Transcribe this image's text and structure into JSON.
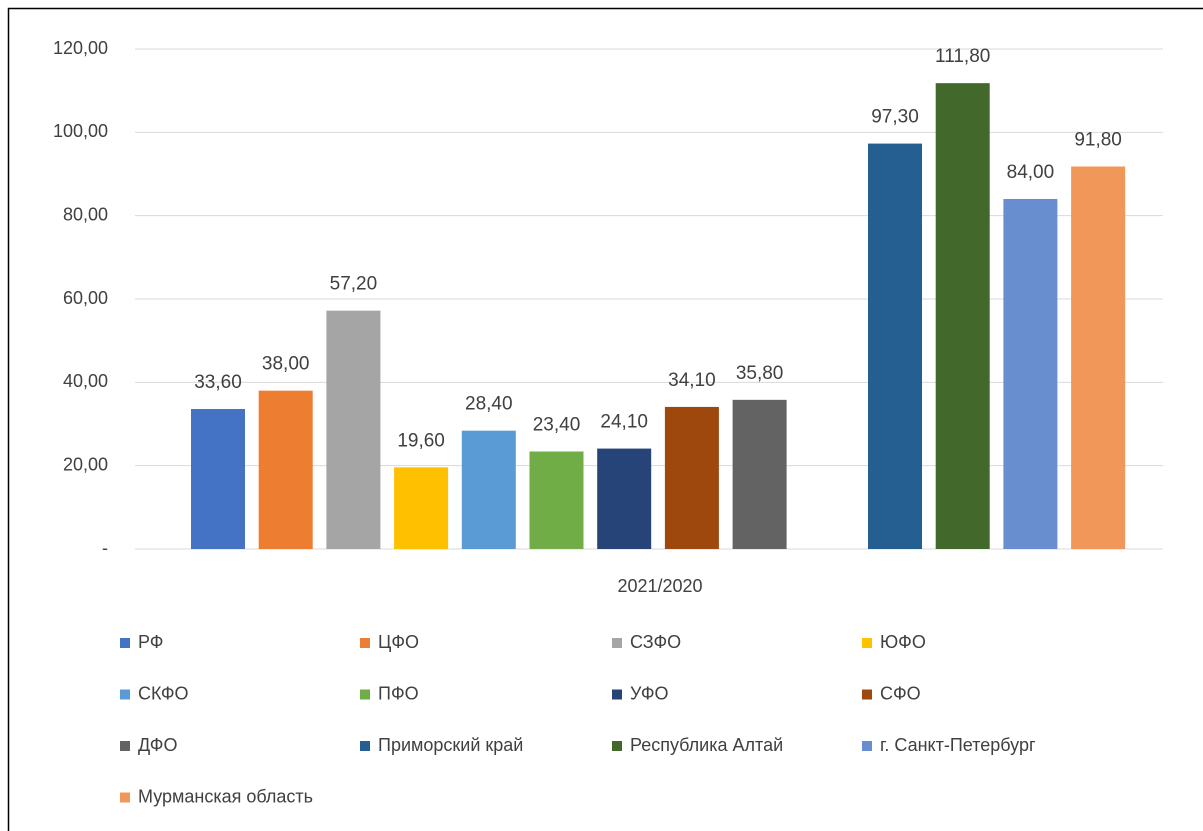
{
  "chart_data": {
    "type": "bar",
    "categories": [
      "2021/2020"
    ],
    "ylim": [
      0,
      120
    ],
    "yticks": [
      {
        "value": 0,
        "label": "-"
      },
      {
        "value": 20,
        "label": "20,00"
      },
      {
        "value": 40,
        "label": "40,00"
      },
      {
        "value": 60,
        "label": "60,00"
      },
      {
        "value": 80,
        "label": "80,00"
      },
      {
        "value": 100,
        "label": "100,00"
      },
      {
        "value": 120,
        "label": "120,00"
      }
    ],
    "grid": true,
    "legend": "bottom",
    "series": [
      {
        "name": "РФ",
        "color": "#4472c4",
        "values": [
          33.6
        ],
        "value_labels": [
          "33,60"
        ]
      },
      {
        "name": "ЦФО",
        "color": "#ed7d31",
        "values": [
          38.0
        ],
        "value_labels": [
          "38,00"
        ]
      },
      {
        "name": "СЗФО",
        "color": "#a5a5a5",
        "values": [
          57.2
        ],
        "value_labels": [
          "57,20"
        ]
      },
      {
        "name": "ЮФО",
        "color": "#ffc000",
        "values": [
          19.6
        ],
        "value_labels": [
          "19,60"
        ]
      },
      {
        "name": "СКФО",
        "color": "#5b9bd5",
        "values": [
          28.4
        ],
        "value_labels": [
          "28,40"
        ]
      },
      {
        "name": "ПФО",
        "color": "#70ad47",
        "values": [
          23.4
        ],
        "value_labels": [
          "23,40"
        ]
      },
      {
        "name": "УФО",
        "color": "#264478",
        "values": [
          24.1
        ],
        "value_labels": [
          "24,10"
        ]
      },
      {
        "name": "СФО",
        "color": "#9e480e",
        "values": [
          34.1
        ],
        "value_labels": [
          "34,10"
        ]
      },
      {
        "name": "ДФО",
        "color": "#636363",
        "values": [
          35.8
        ],
        "value_labels": [
          "35,80"
        ]
      },
      {
        "name": "Приморский край",
        "color": "#255e91",
        "values": [
          97.3
        ],
        "value_labels": [
          "97,30"
        ]
      },
      {
        "name": "Республика Алтай",
        "color": "#43682b",
        "values": [
          111.8
        ],
        "value_labels": [
          "111,80"
        ]
      },
      {
        "name": "г. Санкт-Петербург",
        "color": "#698ed0",
        "values": [
          84.0
        ],
        "value_labels": [
          "84,00"
        ]
      },
      {
        "name": "Мурманская область",
        "color": "#f1975a",
        "values": [
          91.8
        ],
        "value_labels": [
          "91,80"
        ]
      }
    ]
  }
}
